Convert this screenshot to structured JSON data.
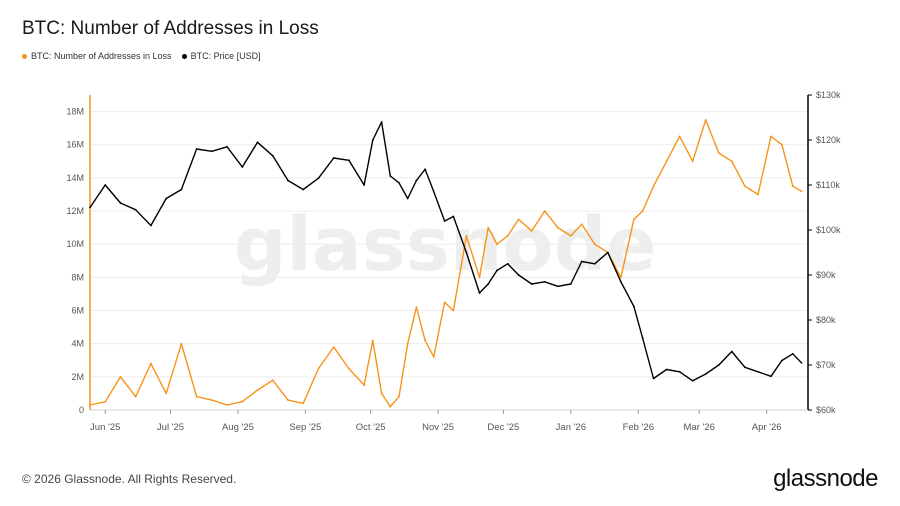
{
  "header": {
    "title": "BTC: Number of Addresses in Loss"
  },
  "footer": {
    "copyright": "© 2026 Glassnode. All Rights Reserved.",
    "logo": "glassnode"
  },
  "watermark": "glassnode",
  "colors": {
    "loss": "#F7931A",
    "price": "#000000",
    "grid": "#ececec",
    "axis": "#555555"
  },
  "chart_data": {
    "type": "line",
    "title": "BTC: Number of Addresses in Loss",
    "x_tick_labels": [
      "Jun '25",
      "Jul '25",
      "Aug '25",
      "Sep '25",
      "Oct '25",
      "Nov '25",
      "Dec '25",
      "Jan '26",
      "Feb '26",
      "Mar '26",
      "Apr '26"
    ],
    "x_ticks": [
      "2025-06-01",
      "2025-07-01",
      "2025-08-01",
      "2025-09-01",
      "2025-10-01",
      "2025-11-01",
      "2025-12-01",
      "2026-01-01",
      "2026-02-01",
      "2026-03-01",
      "2026-04-01"
    ],
    "x_range": [
      "2025-05-25",
      "2026-04-20"
    ],
    "y_left": {
      "label": "",
      "ticks": [
        "0",
        "2M",
        "4M",
        "6M",
        "8M",
        "10M",
        "12M",
        "14M",
        "16M",
        "18M"
      ],
      "ylim": [
        0,
        19000000
      ]
    },
    "y_right": {
      "label": "",
      "ticks": [
        "$60k",
        "$70k",
        "$80k",
        "$90k",
        "$100k",
        "$110k",
        "$120k",
        "$130k"
      ],
      "ylim": [
        60000,
        130000
      ]
    },
    "series": [
      {
        "name": "BTC: Number of Addresses in Loss",
        "axis": "left",
        "x": [
          "2025-05-25",
          "2025-06-01",
          "2025-06-08",
          "2025-06-15",
          "2025-06-22",
          "2025-06-29",
          "2025-07-06",
          "2025-07-13",
          "2025-07-20",
          "2025-07-27",
          "2025-08-03",
          "2025-08-10",
          "2025-08-17",
          "2025-08-24",
          "2025-08-31",
          "2025-09-07",
          "2025-09-14",
          "2025-09-21",
          "2025-09-28",
          "2025-10-02",
          "2025-10-06",
          "2025-10-10",
          "2025-10-14",
          "2025-10-18",
          "2025-10-22",
          "2025-10-26",
          "2025-10-30",
          "2025-11-04",
          "2025-11-08",
          "2025-11-14",
          "2025-11-20",
          "2025-11-24",
          "2025-11-28",
          "2025-12-03",
          "2025-12-08",
          "2025-12-14",
          "2025-12-20",
          "2025-12-26",
          "2026-01-01",
          "2026-01-06",
          "2026-01-12",
          "2026-01-18",
          "2026-01-24",
          "2026-01-30",
          "2026-02-03",
          "2026-02-08",
          "2026-02-14",
          "2026-02-20",
          "2026-02-26",
          "2026-03-04",
          "2026-03-10",
          "2026-03-16",
          "2026-03-22",
          "2026-03-28",
          "2026-04-03",
          "2026-04-08",
          "2026-04-13",
          "2026-04-17"
        ],
        "values": [
          300000,
          500000,
          2000000,
          800000,
          2800000,
          1000000,
          4000000,
          800000,
          600000,
          300000,
          500000,
          1200000,
          1800000,
          600000,
          400000,
          2500000,
          3800000,
          2500000,
          1500000,
          4200000,
          1000000,
          200000,
          800000,
          4000000,
          6200000,
          4200000,
          3200000,
          6500000,
          6000000,
          10500000,
          8000000,
          11000000,
          10000000,
          10500000,
          11500000,
          10800000,
          12000000,
          11000000,
          10500000,
          11200000,
          10000000,
          9500000,
          8000000,
          11500000,
          12000000,
          13500000,
          15000000,
          16500000,
          15000000,
          17500000,
          15500000,
          15000000,
          13500000,
          13000000,
          16500000,
          16000000,
          13500000,
          13200000
        ]
      },
      {
        "name": "BTC: Price [USD]",
        "axis": "right",
        "x": [
          "2025-05-25",
          "2025-06-01",
          "2025-06-08",
          "2025-06-15",
          "2025-06-22",
          "2025-06-29",
          "2025-07-06",
          "2025-07-13",
          "2025-07-20",
          "2025-07-27",
          "2025-08-03",
          "2025-08-10",
          "2025-08-17",
          "2025-08-24",
          "2025-08-31",
          "2025-09-07",
          "2025-09-14",
          "2025-09-21",
          "2025-09-28",
          "2025-10-02",
          "2025-10-06",
          "2025-10-10",
          "2025-10-14",
          "2025-10-18",
          "2025-10-22",
          "2025-10-26",
          "2025-10-30",
          "2025-11-04",
          "2025-11-08",
          "2025-11-14",
          "2025-11-20",
          "2025-11-24",
          "2025-11-28",
          "2025-12-03",
          "2025-12-08",
          "2025-12-14",
          "2025-12-20",
          "2025-12-26",
          "2026-01-01",
          "2026-01-06",
          "2026-01-12",
          "2026-01-18",
          "2026-01-24",
          "2026-01-30",
          "2026-02-03",
          "2026-02-08",
          "2026-02-14",
          "2026-02-20",
          "2026-02-26",
          "2026-03-04",
          "2026-03-10",
          "2026-03-16",
          "2026-03-22",
          "2026-03-28",
          "2026-04-03",
          "2026-04-08",
          "2026-04-13",
          "2026-04-17"
        ],
        "values": [
          105000,
          110000,
          106000,
          104500,
          101000,
          107000,
          109000,
          118000,
          117500,
          118500,
          114000,
          119500,
          116500,
          111000,
          109000,
          111500,
          116000,
          115500,
          110000,
          120000,
          124000,
          112000,
          110500,
          107000,
          111000,
          113500,
          108500,
          102000,
          103000,
          95000,
          86000,
          88000,
          91000,
          92500,
          90000,
          88000,
          88500,
          87500,
          88000,
          93000,
          92500,
          95000,
          88500,
          83000,
          76000,
          67000,
          69000,
          68500,
          66500,
          68000,
          70000,
          73000,
          69500,
          68500,
          67500,
          71000,
          72500,
          70500
        ]
      }
    ],
    "grid": true,
    "legend": "top-left"
  }
}
